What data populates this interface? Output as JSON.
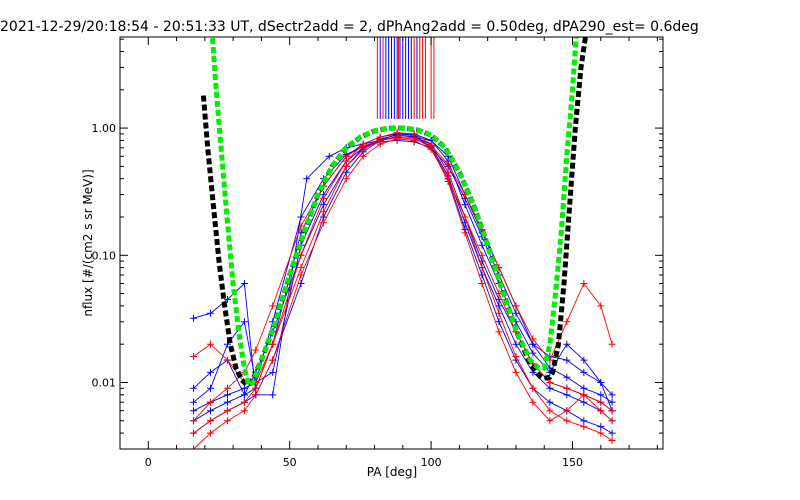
{
  "chart_data": {
    "type": "line",
    "title": "2021-12-29/20:18:54 - 20:51:33 UT, dSectr2add = 2, dPhAng2add = 0.50deg, dPA290_est=    0.6deg",
    "xlabel": "PA [deg]",
    "ylabel": "nflux [#/(cm2 s sr MeV)]",
    "xlim": [
      -10,
      182
    ],
    "ylim": [
      0.003,
      5.2
    ],
    "yscale": "log",
    "grid": false,
    "x_ticks": [
      0,
      50,
      100,
      150
    ],
    "x_tick_labels": [
      "0",
      "50",
      "100",
      "150"
    ],
    "y_ticks": [
      0.01,
      0.1,
      1.0
    ],
    "y_tick_labels": [
      "0.01",
      "0.10",
      "1.00"
    ],
    "colors": {
      "blue_series": "#0000ff",
      "red_series": "#ff0000",
      "black_fit": "#000000",
      "green_fit": "#00ee00",
      "axes": "#000000",
      "background": "#ffffff"
    },
    "series": [
      {
        "color": "blue",
        "x": [
          16,
          22,
          28,
          34,
          38,
          44,
          56,
          64,
          70,
          76,
          82,
          88,
          94,
          100,
          106,
          112,
          118,
          124,
          130,
          136,
          142,
          148,
          154,
          160,
          164
        ],
        "y": [
          0.032,
          0.035,
          0.045,
          0.06,
          0.008,
          0.008,
          0.4,
          0.6,
          0.7,
          0.75,
          0.8,
          0.85,
          0.85,
          0.8,
          0.6,
          0.3,
          0.15,
          0.08,
          0.04,
          0.02,
          0.016,
          0.015,
          0.012,
          0.01,
          0.006
        ]
      },
      {
        "color": "blue",
        "x": [
          16,
          22,
          28,
          34,
          38,
          44,
          54,
          62,
          70,
          76,
          82,
          88,
          94,
          100,
          106,
          112,
          118,
          124,
          130,
          136,
          142,
          148,
          154,
          160,
          164
        ],
        "y": [
          0.006,
          0.007,
          0.008,
          0.009,
          0.01,
          0.012,
          0.12,
          0.3,
          0.55,
          0.7,
          0.8,
          0.85,
          0.85,
          0.75,
          0.45,
          0.2,
          0.09,
          0.045,
          0.025,
          0.014,
          0.01,
          0.009,
          0.008,
          0.007,
          0.006
        ]
      },
      {
        "color": "blue",
        "x": [
          16,
          22,
          28,
          34,
          38,
          44,
          54,
          62,
          70,
          76,
          82,
          88,
          94,
          100,
          106,
          112,
          118,
          124,
          130,
          136,
          142,
          148,
          154,
          160,
          164
        ],
        "y": [
          0.004,
          0.005,
          0.006,
          0.007,
          0.008,
          0.015,
          0.06,
          0.2,
          0.45,
          0.65,
          0.8,
          0.9,
          0.88,
          0.7,
          0.4,
          0.16,
          0.07,
          0.03,
          0.015,
          0.009,
          0.007,
          0.006,
          0.005,
          0.0045,
          0.004
        ]
      },
      {
        "color": "blue",
        "x": [
          16,
          22,
          28,
          34,
          38,
          44,
          54,
          62,
          70,
          76,
          82,
          88,
          94,
          100,
          106,
          112,
          118,
          124,
          130,
          136,
          142,
          148,
          154,
          160,
          164
        ],
        "y": [
          0.009,
          0.012,
          0.015,
          0.008,
          0.009,
          0.02,
          0.15,
          0.35,
          0.6,
          0.75,
          0.85,
          0.9,
          0.9,
          0.8,
          0.55,
          0.25,
          0.12,
          0.06,
          0.03,
          0.017,
          0.012,
          0.02,
          0.015,
          0.01,
          0.008
        ]
      },
      {
        "color": "blue",
        "x": [
          16,
          22,
          28,
          34,
          38,
          44,
          54,
          62,
          70,
          76,
          82,
          88,
          94,
          100,
          106,
          112,
          118,
          124,
          130,
          136,
          142,
          148,
          154,
          160,
          164
        ],
        "y": [
          0.007,
          0.009,
          0.02,
          0.03,
          0.01,
          0.03,
          0.2,
          0.4,
          0.62,
          0.72,
          0.78,
          0.8,
          0.78,
          0.7,
          0.5,
          0.28,
          0.14,
          0.07,
          0.035,
          0.02,
          0.013,
          0.011,
          0.009,
          0.008,
          0.007
        ]
      },
      {
        "color": "blue",
        "x": [
          16,
          22,
          28,
          34,
          38,
          44,
          54,
          62,
          70,
          76,
          82,
          88,
          94,
          100,
          106,
          112,
          118,
          124,
          130,
          136,
          142,
          148,
          154,
          160,
          164
        ],
        "y": [
          0.005,
          0.006,
          0.007,
          0.008,
          0.012,
          0.025,
          0.1,
          0.25,
          0.5,
          0.7,
          0.82,
          0.88,
          0.86,
          0.72,
          0.42,
          0.18,
          0.08,
          0.04,
          0.02,
          0.012,
          0.009,
          0.008,
          0.007,
          0.006,
          0.005
        ]
      },
      {
        "color": "red",
        "x": [
          16,
          22,
          28,
          34,
          38,
          44,
          54,
          62,
          70,
          76,
          82,
          88,
          94,
          100,
          106,
          112,
          118,
          124,
          130,
          136,
          142,
          148,
          154,
          160,
          164
        ],
        "y": [
          0.004,
          0.005,
          0.006,
          0.007,
          0.009,
          0.02,
          0.1,
          0.28,
          0.55,
          0.75,
          0.85,
          0.92,
          0.9,
          0.75,
          0.45,
          0.2,
          0.08,
          0.035,
          0.016,
          0.009,
          0.006,
          0.005,
          0.0045,
          0.004,
          0.0035
        ]
      },
      {
        "color": "red",
        "x": [
          16,
          22,
          28,
          34,
          38,
          44,
          54,
          62,
          70,
          76,
          82,
          88,
          94,
          100,
          106,
          112,
          118,
          124,
          130,
          136,
          142,
          148,
          154,
          160,
          164
        ],
        "y": [
          0.016,
          0.02,
          0.015,
          0.01,
          0.01,
          0.02,
          0.08,
          0.22,
          0.5,
          0.68,
          0.8,
          0.86,
          0.84,
          0.7,
          0.38,
          0.15,
          0.06,
          0.025,
          0.012,
          0.007,
          0.005,
          0.006,
          0.008,
          0.006,
          0.005
        ]
      },
      {
        "color": "red",
        "x": [
          16,
          22,
          28,
          34,
          38,
          44,
          54,
          62,
          70,
          76,
          82,
          88,
          94,
          100,
          106,
          112,
          118,
          124,
          130,
          136,
          142,
          148,
          154,
          160,
          164
        ],
        "y": [
          0.003,
          0.004,
          0.005,
          0.006,
          0.008,
          0.015,
          0.07,
          0.18,
          0.4,
          0.6,
          0.75,
          0.82,
          0.8,
          0.68,
          0.4,
          0.2,
          0.1,
          0.05,
          0.025,
          0.014,
          0.01,
          0.009,
          0.008,
          0.007,
          0.006
        ]
      },
      {
        "color": "red",
        "x": [
          16,
          22,
          28,
          34,
          38,
          44,
          54,
          62,
          70,
          76,
          82,
          88,
          94,
          100,
          106,
          112,
          118,
          124,
          130,
          136,
          142,
          148,
          154,
          160,
          164
        ],
        "y": [
          0.005,
          0.007,
          0.009,
          0.012,
          0.018,
          0.04,
          0.17,
          0.35,
          0.6,
          0.72,
          0.8,
          0.84,
          0.82,
          0.73,
          0.52,
          0.3,
          0.16,
          0.08,
          0.04,
          0.022,
          0.015,
          0.03,
          0.06,
          0.04,
          0.02
        ]
      }
    ],
    "fits": [
      {
        "name": "black-fit",
        "color": "black",
        "x": [
          19.5,
          21,
          23,
          25,
          27,
          29,
          31,
          33,
          35,
          37,
          40,
          45,
          50,
          55,
          60,
          65,
          70,
          75,
          80,
          85,
          90,
          95,
          100,
          105,
          110,
          115,
          120,
          125,
          130,
          135,
          138,
          140,
          142,
          143,
          145,
          147,
          149,
          151,
          153,
          155
        ],
        "y": [
          1.8,
          0.7,
          0.25,
          0.09,
          0.04,
          0.02,
          0.013,
          0.0105,
          0.0095,
          0.0105,
          0.015,
          0.03,
          0.07,
          0.15,
          0.3,
          0.5,
          0.7,
          0.85,
          0.95,
          1.0,
          1.0,
          0.97,
          0.88,
          0.7,
          0.45,
          0.25,
          0.12,
          0.055,
          0.026,
          0.014,
          0.0115,
          0.0108,
          0.011,
          0.012,
          0.02,
          0.06,
          0.25,
          1.0,
          3.0,
          6.0
        ]
      },
      {
        "name": "green-fit",
        "color": "green",
        "x": [
          22.5,
          24,
          26,
          28,
          30,
          32,
          34,
          35.5,
          37,
          40,
          45,
          50,
          55,
          60,
          65,
          70,
          75,
          80,
          85,
          90,
          95,
          100,
          105,
          110,
          115,
          120,
          125,
          130,
          135,
          138,
          140,
          142,
          144,
          146,
          148,
          150,
          151.5
        ],
        "y": [
          6.0,
          2.0,
          0.6,
          0.18,
          0.06,
          0.025,
          0.013,
          0.0095,
          0.01,
          0.015,
          0.03,
          0.07,
          0.15,
          0.3,
          0.5,
          0.7,
          0.85,
          0.95,
          1.0,
          1.0,
          0.97,
          0.88,
          0.7,
          0.45,
          0.25,
          0.12,
          0.055,
          0.026,
          0.015,
          0.013,
          0.013,
          0.02,
          0.05,
          0.15,
          0.6,
          2.0,
          6.0
        ]
      }
    ],
    "vertical_lines": [
      {
        "color": "blue",
        "x": [
          82,
          84,
          85,
          86,
          87,
          88,
          89,
          90,
          91,
          92,
          93,
          95
        ]
      },
      {
        "color": "red",
        "x": [
          81,
          83,
          88.5,
          94,
          96,
          97,
          98,
          100,
          101
        ]
      }
    ]
  }
}
